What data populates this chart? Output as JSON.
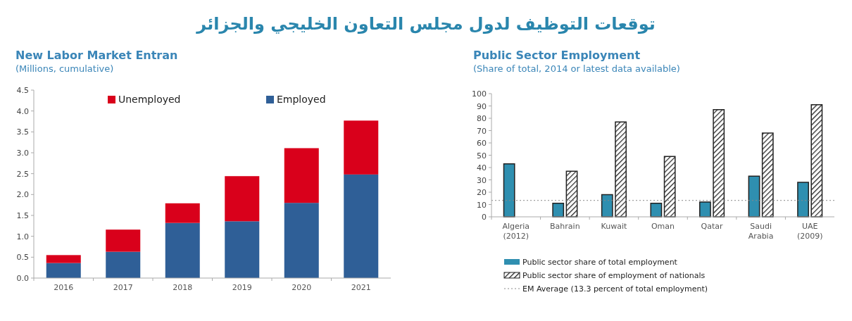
{
  "chart_data": [
    {
      "type": "other",
      "title": "توقعات التوظيف لدول مجلس التعاون الخليجي والجزائر"
    },
    {
      "type": "bar",
      "title": "New Labor Market Entran",
      "subtitle": "(Millions, cumulative)",
      "stacked": true,
      "legend": "top",
      "categories": [
        "2016",
        "2017",
        "2018",
        "2019",
        "2020",
        "2021"
      ],
      "series": [
        {
          "name": "Employed",
          "color": "#2f5f97",
          "values": [
            0.36,
            0.63,
            1.32,
            1.36,
            1.8,
            2.48
          ]
        },
        {
          "name": "Unemployed",
          "color": "#d9001b",
          "values": [
            0.19,
            0.53,
            0.47,
            1.08,
            1.31,
            1.29
          ]
        }
      ],
      "ylim": [
        0,
        4.5
      ],
      "yticks": [
        {
          "value": 0,
          "label": "0.0"
        },
        {
          "value": 0.5,
          "label": "0.5"
        },
        {
          "value": 1,
          "label": "1.0"
        },
        {
          "value": 1.5,
          "label": "1.5"
        },
        {
          "value": 2,
          "label": "2.0"
        },
        {
          "value": 2.5,
          "label": "2.5"
        },
        {
          "value": 3,
          "label": "3.0"
        },
        {
          "value": 3.5,
          "label": "3.5"
        },
        {
          "value": 4,
          "label": "4.0"
        },
        {
          "value": 4.5,
          "label": "4.5"
        }
      ]
    },
    {
      "type": "bar",
      "title": "Public Sector Employment",
      "subtitle": "(Share of total, 2014 or latest data available)",
      "legend": "bottom",
      "categories": [
        "Algeria\n(2012)",
        "Bahrain",
        "Kuwait",
        "Oman",
        "Qatar",
        "Saudi\nArabia",
        "UAE\n(2009)"
      ],
      "series": [
        {
          "name": "Public sector share of total employment",
          "color": "#2f8fb0",
          "values": [
            43,
            11,
            18,
            11,
            12,
            33,
            28
          ]
        },
        {
          "name": "Public sector share of employment of nationals",
          "color": "#222222",
          "values": [
            null,
            37,
            77,
            49,
            87,
            68,
            91
          ]
        }
      ],
      "ref_lines": [
        {
          "axis": "y",
          "value": 13.3,
          "label": "EM Average (13.3 percent of total employment)",
          "line_style": "dotted",
          "color": "#888888"
        }
      ],
      "ylim": [
        0,
        100
      ],
      "yticks": [
        0,
        10,
        20,
        30,
        40,
        50,
        60,
        70,
        80,
        90,
        100
      ]
    }
  ]
}
